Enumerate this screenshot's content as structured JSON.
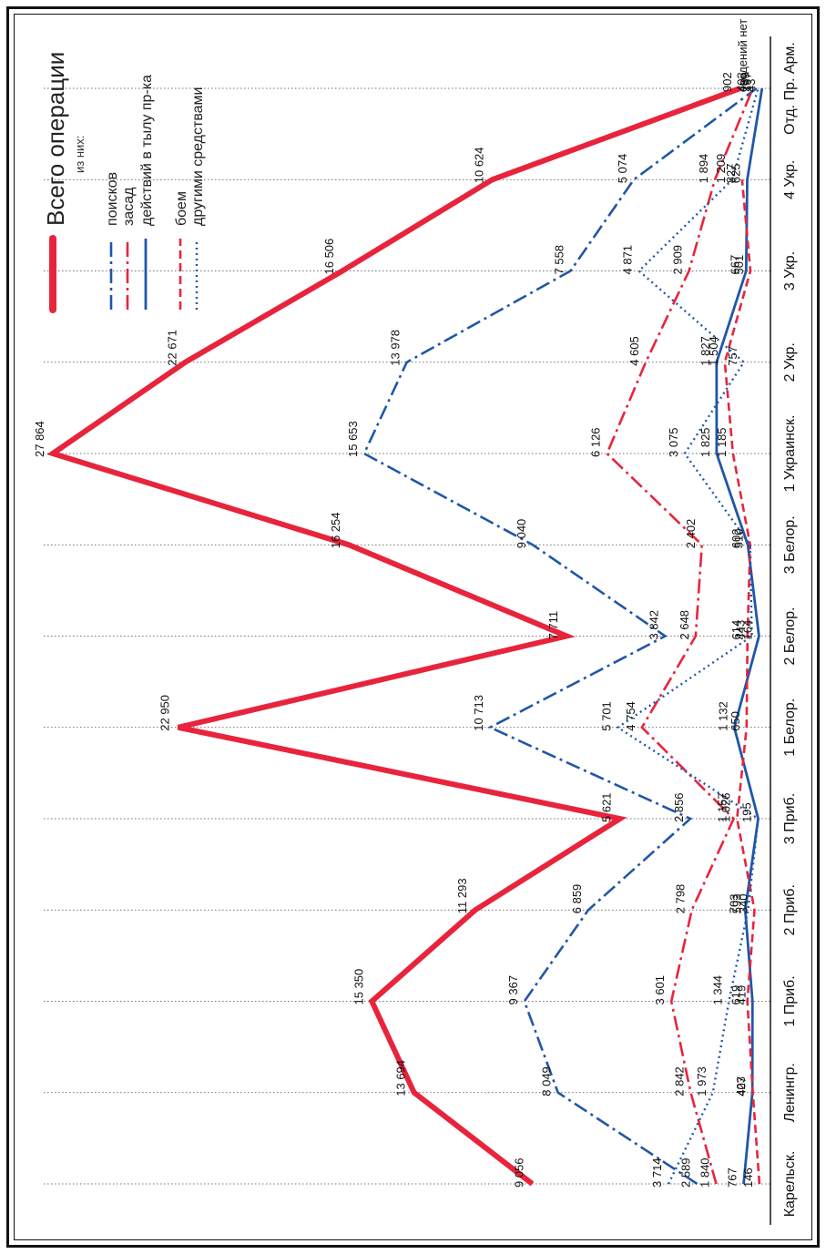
{
  "chart_data": {
    "type": "line",
    "categories": [
      "Карельск.",
      "Ленингр.",
      "1 Приб.",
      "2 Приб.",
      "3 Приб.",
      "1 Белор.",
      "2 Белор.",
      "3 Белор.",
      "1 Украинск.",
      "2 Укр.",
      "3 Укр.",
      "4 Укр.",
      "Отд. Пр. Арм."
    ],
    "legend": {
      "title": "Всего операции",
      "subtitle": "из них:",
      "placement": "top-right (rotated)"
    },
    "series": [
      {
        "name": "Всего операции",
        "color": "#e8243c",
        "style": "solid-thick",
        "values": [
          9056,
          13694,
          15350,
          11293,
          5621,
          22950,
          7711,
          16254,
          27864,
          22671,
          16506,
          10624,
          902
        ],
        "labels": [
          "9 056",
          "13 694",
          "15 350",
          "11 293",
          "5 621",
          "22 950",
          "7 711",
          "16 254",
          "27 864",
          "22 671",
          "16 506",
          "10 624",
          "902"
        ]
      },
      {
        "name": "поисков",
        "color": "#1f57a8",
        "style": "dashdot",
        "values": [
          2589,
          8049,
          9367,
          6859,
          2856,
          10713,
          3842,
          9040,
          15653,
          13978,
          7558,
          5074,
          259
        ],
        "labels": [
          "2 589",
          "8 049",
          "9 367",
          "6 859",
          "2 856",
          "10 713",
          "3 842",
          "9 040",
          "15 653",
          "13 978",
          "7 558",
          "5 074",
          "259"
        ]
      },
      {
        "name": "засад",
        "color": "#e8243c",
        "style": "dashdot",
        "values": [
          1840,
          2842,
          3601,
          2798,
          1157,
          4754,
          2648,
          2402,
          6126,
          4605,
          2909,
          1894,
          403
        ],
        "labels": [
          "1 840",
          "2 842",
          "3 601",
          "2 798",
          "1 157",
          "4 754",
          "2 648",
          "2 402",
          "6 126",
          "4 605",
          "2 909",
          "1 894",
          "403"
        ]
      },
      {
        "name": "действий в тылу пр-ка",
        "color": "#1f57a8",
        "style": "solid",
        "values": [
          767,
          423,
          419,
          703,
          195,
          1132,
          164,
          602,
          1825,
          1827,
          667,
          625,
          43
        ],
        "labels": [
          "767",
          "423",
          "419",
          "703",
          "195",
          "1 132",
          "164",
          "602",
          "1 825",
          "1 827",
          "667",
          "625",
          "43"
        ]
      },
      {
        "name": "боем",
        "color": "#e8243c",
        "style": "dashed",
        "values": [
          146,
          407,
          619,
          340,
          1026,
          650,
          614,
          510,
          1185,
          1504,
          501,
          827,
          null
        ],
        "labels": [
          "146",
          "407",
          "619",
          "340",
          "1 026",
          "650",
          "614",
          "510",
          "1 185",
          "1 504",
          "501",
          "827",
          "сведений нет"
        ]
      },
      {
        "name": "другими средствами",
        "color": "#1f57a8",
        "style": "dotted",
        "values": [
          3714,
          1973,
          1344,
          593,
          195,
          5701,
          443,
          510,
          3075,
          757,
          4871,
          1209,
          197
        ],
        "labels": [
          "3 714",
          "1 973",
          "1 344",
          "593",
          "",
          "5 701",
          "443",
          "",
          "3 075",
          "757",
          "4 871",
          "1 209",
          "197"
        ]
      }
    ],
    "grid": "vertical dotted per category",
    "orientation": "rotated 90° counter-clockwise"
  }
}
